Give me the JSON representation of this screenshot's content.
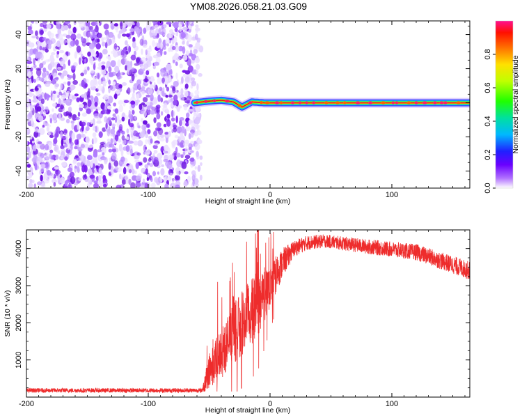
{
  "title": "YM08.2026.058.21.03.G09",
  "colors": {
    "noise": "#7a1cf0",
    "signal_line": "#e02020",
    "snr_line": "#ee2c2c",
    "axis": "#000000",
    "background": "#ffffff"
  },
  "chart_data": [
    {
      "type": "heatmap",
      "name": "spectrogram",
      "xlabel": "Height of straight line (km)",
      "ylabel": "Frequency (Hz)",
      "xlim": [
        -200,
        164
      ],
      "ylim": [
        -50,
        48
      ],
      "x_ticks": [
        -200,
        -100,
        0,
        100
      ],
      "x_tick_labels": [
        "-200",
        "-100",
        "0",
        "100"
      ],
      "y_ticks": [
        -40,
        -20,
        0,
        20,
        40
      ],
      "y_tick_labels": [
        "-40",
        "-20",
        "0",
        "20",
        "40"
      ],
      "noise_region_x": [
        -200,
        -60
      ],
      "signal_start_x": -62,
      "signal_frequency_hz": 0,
      "signal_track": [
        {
          "x": -62,
          "f": 0
        },
        {
          "x": -50,
          "f": 1.0
        },
        {
          "x": -40,
          "f": 1.5
        },
        {
          "x": -30,
          "f": 0.5
        },
        {
          "x": -23,
          "f": -2.5
        },
        {
          "x": -15,
          "f": 0.5
        },
        {
          "x": -5,
          "f": 0
        },
        {
          "x": 20,
          "f": 0
        },
        {
          "x": 164,
          "f": 0
        }
      ],
      "colorbar": {
        "label": "Normalized spectral amplitude",
        "range": [
          0.0,
          1.0
        ],
        "ticks": [
          0.0,
          0.2,
          0.4,
          0.6,
          0.8
        ],
        "tick_labels": [
          "0.0",
          "0.2",
          "0.4",
          "0.6",
          "0.8"
        ]
      }
    },
    {
      "type": "line",
      "name": "snr",
      "xlabel": "Height of straight line (km)",
      "ylabel": "SNR (10 * v/v)",
      "xlim": [
        -200,
        164
      ],
      "ylim": [
        0,
        4500
      ],
      "x_ticks": [
        -200,
        -100,
        0,
        100
      ],
      "x_tick_labels": [
        "-200",
        "-100",
        "0",
        "100"
      ],
      "y_ticks": [
        1000,
        2000,
        3000,
        4000
      ],
      "y_tick_labels": [
        "1000",
        "2000",
        "3000",
        "4000"
      ],
      "envelope": [
        {
          "x": -200,
          "mean": 180,
          "noise": 60
        },
        {
          "x": -56,
          "mean": 180,
          "noise": 60
        },
        {
          "x": -50,
          "mean": 700,
          "noise": 500
        },
        {
          "x": -40,
          "mean": 1200,
          "noise": 700
        },
        {
          "x": -30,
          "mean": 1700,
          "noise": 800
        },
        {
          "x": -20,
          "mean": 2100,
          "noise": 900
        },
        {
          "x": -10,
          "mean": 2500,
          "noise": 900
        },
        {
          "x": 0,
          "mean": 3000,
          "noise": 600
        },
        {
          "x": 10,
          "mean": 3600,
          "noise": 400
        },
        {
          "x": 20,
          "mean": 4000,
          "noise": 220
        },
        {
          "x": 30,
          "mean": 4150,
          "noise": 200
        },
        {
          "x": 45,
          "mean": 4200,
          "noise": 180
        },
        {
          "x": 80,
          "mean": 4050,
          "noise": 200
        },
        {
          "x": 120,
          "mean": 3900,
          "noise": 220
        },
        {
          "x": 164,
          "mean": 3400,
          "noise": 250
        }
      ],
      "spikes": [
        {
          "x": -43,
          "y": 3100
        },
        {
          "x": -12,
          "y": 4400
        },
        {
          "x": -28,
          "y": 2600
        },
        {
          "x": -18,
          "y": 3000
        }
      ]
    }
  ]
}
